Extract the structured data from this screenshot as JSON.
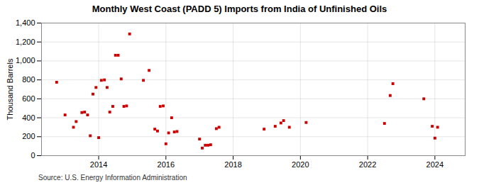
{
  "chart_data": {
    "type": "scatter",
    "title": "Monthly West Coast (PADD 5) Imports from India of Unfinished Oils",
    "ylabel": "Thousand Barrels",
    "annotations": [
      "Source: U.S. Energy Information Administration"
    ],
    "x": [
      2012.75,
      2013.0,
      2013.25,
      2013.33,
      2013.5,
      2013.58,
      2013.67,
      2013.75,
      2013.83,
      2013.92,
      2014.0,
      2014.08,
      2014.17,
      2014.25,
      2014.33,
      2014.42,
      2014.5,
      2014.58,
      2014.67,
      2014.75,
      2014.83,
      2014.92,
      2015.33,
      2015.5,
      2015.67,
      2015.75,
      2015.83,
      2015.92,
      2016.0,
      2016.08,
      2016.17,
      2016.25,
      2016.33,
      2017.0,
      2017.08,
      2017.17,
      2017.25,
      2017.33,
      2017.5,
      2017.58,
      2018.92,
      2019.25,
      2019.42,
      2019.5,
      2019.67,
      2020.17,
      2022.5,
      2022.67,
      2022.75,
      2023.67,
      2023.92,
      2024.0,
      2024.08
    ],
    "values": [
      775,
      430,
      300,
      360,
      455,
      460,
      430,
      210,
      650,
      720,
      190,
      795,
      800,
      720,
      460,
      520,
      1060,
      1060,
      810,
      520,
      525,
      1285,
      795,
      900,
      280,
      260,
      520,
      525,
      125,
      240,
      400,
      250,
      255,
      175,
      80,
      110,
      110,
      115,
      285,
      300,
      280,
      310,
      345,
      370,
      300,
      350,
      340,
      635,
      760,
      600,
      310,
      185,
      300
    ],
    "color": "#cc0000",
    "marker": "square",
    "xlim": [
      2012.3,
      2024.9
    ],
    "xticks": [
      2014,
      2016,
      2018,
      2020,
      2022,
      2024
    ],
    "ylim": [
      0,
      1400
    ],
    "yticks": [
      0,
      200,
      400,
      600,
      800,
      {
        "value": 1000,
        "label": "1,000"
      },
      {
        "value": 1200,
        "label": "1,200"
      },
      {
        "value": 1400,
        "label": "1,400"
      }
    ],
    "grid": true
  }
}
